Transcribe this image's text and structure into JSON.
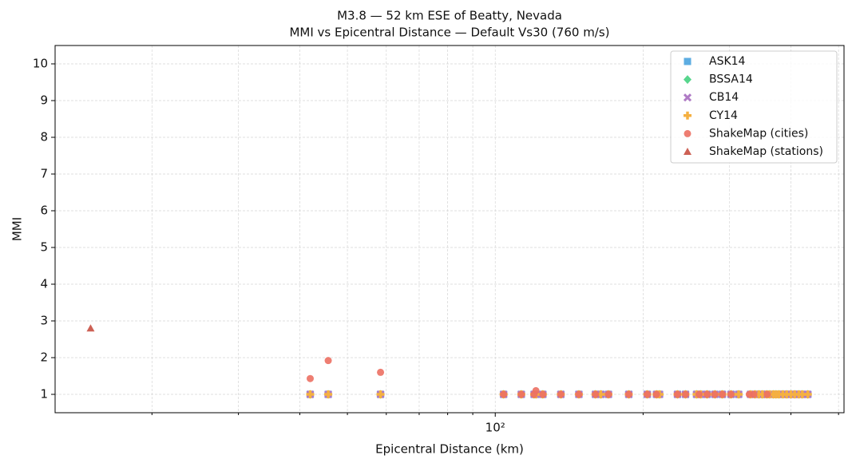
{
  "chart_data": {
    "type": "scatter",
    "title": "M3.8 — 52 km ESE of Beatty, Nevada",
    "subtitle": "MMI vs Epicentral Distance — Default Vs30 (760 m/s)",
    "x_label": "Epicentral Distance (km)",
    "y_label": "MMI",
    "x_scale": "log",
    "xlim": [
      12.7,
      513
    ],
    "ylim": [
      0.5,
      10.5
    ],
    "xticks": [
      {
        "value": 100,
        "label": "10²"
      }
    ],
    "x_minor_ticks": [
      20,
      30,
      40,
      50,
      60,
      70,
      80,
      90,
      200,
      300,
      400,
      500
    ],
    "yticks": [
      1,
      2,
      3,
      4,
      5,
      6,
      7,
      8,
      9,
      10
    ],
    "grid": true,
    "legend": "upper right",
    "series": [
      {
        "name": "ASK14",
        "color": "#5dade2",
        "marker": "square",
        "x": [
          42,
          45.7,
          58.4,
          104,
          113,
          120,
          121,
          125,
          136,
          148,
          160,
          164,
          170,
          187,
          204,
          213,
          216,
          235,
          244,
          257,
          262,
          270,
          280,
          290,
          302,
          313,
          331,
          338,
          344,
          350,
          357,
          362,
          368,
          373,
          378,
          385,
          392,
          400,
          407,
          415,
          422,
          433
        ],
        "values": [
          1,
          1,
          1,
          1,
          1,
          1,
          1,
          1,
          1,
          1,
          1,
          1,
          1,
          1,
          1,
          1,
          1,
          1,
          1,
          1,
          1,
          1,
          1,
          1,
          1,
          1,
          1,
          1,
          1,
          1,
          1,
          1,
          1,
          1,
          1,
          1,
          1,
          1,
          1,
          1,
          1,
          1
        ]
      },
      {
        "name": "BSSA14",
        "color": "#58d68d",
        "marker": "diamond",
        "x": [
          42,
          45.7,
          58.4,
          104,
          113,
          120,
          121,
          125,
          136,
          148,
          160,
          164,
          170,
          187,
          204,
          213,
          216,
          235,
          244,
          257,
          262,
          270,
          280,
          290,
          302,
          313,
          331,
          338,
          344,
          350,
          357,
          362,
          368,
          373,
          378,
          385,
          392,
          400,
          407,
          415,
          422,
          433
        ],
        "values": [
          1,
          1,
          1,
          1,
          1,
          1,
          1,
          1,
          1,
          1,
          1,
          1,
          1,
          1,
          1,
          1,
          1,
          1,
          1,
          1,
          1,
          1,
          1,
          1,
          1,
          1,
          1,
          1,
          1,
          1,
          1,
          1,
          1,
          1,
          1,
          1,
          1,
          1,
          1,
          1,
          1,
          1
        ]
      },
      {
        "name": "CB14",
        "color": "#af7ac5",
        "marker": "x",
        "x": [
          42,
          45.7,
          58.4,
          104,
          113,
          120,
          121,
          125,
          136,
          148,
          160,
          164,
          170,
          187,
          204,
          213,
          216,
          235,
          244,
          257,
          262,
          270,
          280,
          290,
          302,
          313,
          331,
          338,
          344,
          350,
          357,
          362,
          368,
          373,
          378,
          385,
          392,
          400,
          407,
          415,
          422,
          433
        ],
        "values": [
          1,
          1,
          1,
          1,
          1,
          1,
          1,
          1,
          1,
          1,
          1,
          1,
          1,
          1,
          1,
          1,
          1,
          1,
          1,
          1,
          1,
          1,
          1,
          1,
          1,
          1,
          1,
          1,
          1,
          1,
          1,
          1,
          1,
          1,
          1,
          1,
          1,
          1,
          1,
          1,
          1,
          1
        ]
      },
      {
        "name": "CY14",
        "color": "#f5b041",
        "marker": "plus",
        "x": [
          42,
          45.7,
          58.4,
          104,
          113,
          120,
          121,
          125,
          136,
          148,
          160,
          164,
          170,
          187,
          204,
          213,
          216,
          235,
          244,
          257,
          262,
          270,
          280,
          290,
          302,
          313,
          331,
          338,
          344,
          350,
          357,
          362,
          368,
          373,
          378,
          385,
          392,
          400,
          407,
          415,
          422,
          433
        ],
        "values": [
          1,
          1,
          1,
          1,
          1,
          1,
          1,
          1,
          1,
          1,
          1,
          1,
          1,
          1,
          1,
          1,
          1,
          1,
          1,
          1,
          1,
          1,
          1,
          1,
          1,
          1,
          1,
          1,
          1,
          1,
          1,
          1,
          1,
          1,
          1,
          1,
          1,
          1,
          1,
          1,
          1,
          1
        ]
      },
      {
        "name": "ShakeMap (cities)",
        "color": "#ec7063",
        "marker": "circle",
        "x": [
          42,
          45.7,
          58.4,
          121,
          104,
          113,
          120,
          125,
          136,
          148,
          160,
          170,
          187,
          204,
          213,
          235,
          244,
          260,
          270,
          280,
          290,
          302,
          329,
          336,
          358
        ],
        "values": [
          1.43,
          1.92,
          1.6,
          1.1,
          1,
          1,
          1,
          1,
          1,
          1,
          1,
          1,
          1,
          1,
          1,
          1,
          1,
          1,
          1,
          1,
          1,
          1,
          1,
          1,
          1
        ]
      },
      {
        "name": "ShakeMap (stations)",
        "color": "#cd6155",
        "marker": "triangle",
        "x": [
          15.0
        ],
        "values": [
          2.8
        ]
      }
    ]
  }
}
